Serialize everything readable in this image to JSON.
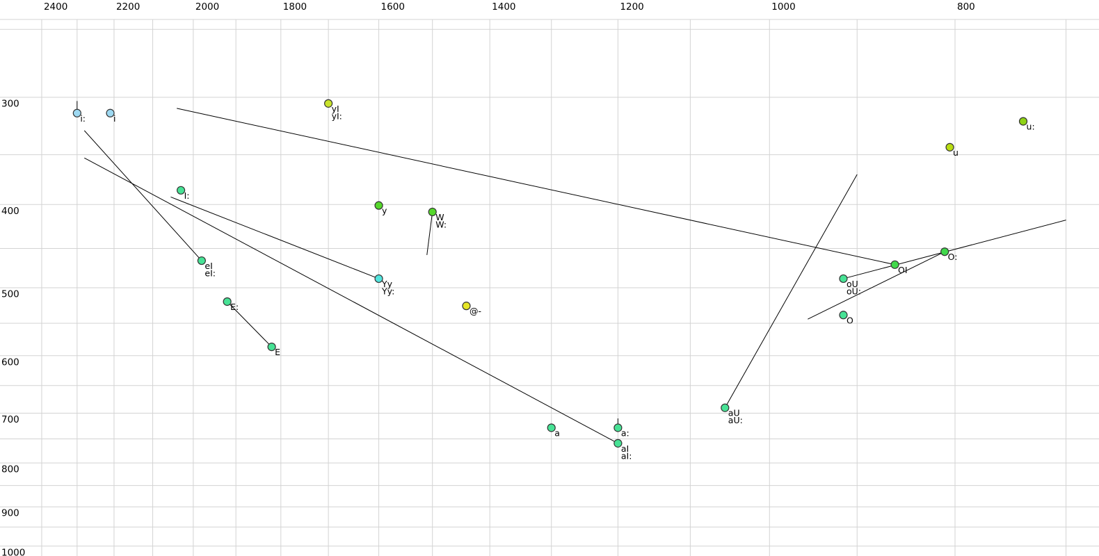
{
  "chart_data": {
    "type": "scatter",
    "title": "",
    "description": "Vowel formant plot: F2 (Hz) on reversed log top axis, F1 (Hz) on reversed log left axis, X-SAMPA vowel labels with diphthong trajectory lines",
    "x_axis": {
      "position": "top",
      "scale": "log",
      "reversed": true,
      "tick_labels": [
        2400,
        2200,
        2000,
        1800,
        1600,
        1400,
        1200,
        1000,
        800
      ],
      "range_hz": [
        2524,
        673
      ]
    },
    "y_axis": {
      "position": "left",
      "scale": "log",
      "reversed": true,
      "tick_labels": [
        300,
        400,
        500,
        600,
        700,
        800,
        900,
        1000
      ],
      "range_hz": [
        244,
        1027
      ]
    },
    "grid": {
      "on": true,
      "color": "#d3d3d3",
      "x_lines_hz": [
        2400,
        2300,
        2200,
        2100,
        2000,
        1900,
        1800,
        1700,
        1600,
        1500,
        1400,
        1300,
        1200,
        1100,
        1000,
        900,
        800,
        700
      ],
      "y_lines_hz": [
        250,
        300,
        350,
        400,
        450,
        500,
        550,
        600,
        650,
        700,
        750,
        800,
        850,
        900,
        950,
        1000
      ],
      "top_border": true
    },
    "point_border_color": "#333333",
    "line_color": "#000000",
    "points": [
      {
        "labels": [
          "i:"
        ],
        "f2": 2300,
        "f1": 313,
        "color": "#9ED9F2"
      },
      {
        "labels": [
          "i"
        ],
        "f2": 2210,
        "f1": 313,
        "color": "#9ED9F2"
      },
      {
        "labels": [
          "I:"
        ],
        "f2": 2030,
        "f1": 385,
        "color": "#47E295"
      },
      {
        "labels": [
          "eI",
          "eI:"
        ],
        "f2": 1980,
        "f1": 465,
        "color": "#47E295"
      },
      {
        "labels": [
          "E:"
        ],
        "f2": 1920,
        "f1": 519,
        "color": "#47E295"
      },
      {
        "labels": [
          "E"
        ],
        "f2": 1820,
        "f1": 586,
        "color": "#47E295"
      },
      {
        "labels": [
          "yI",
          "yI:"
        ],
        "f2": 1700,
        "f1": 305,
        "color": "#C9E32B"
      },
      {
        "labels": [
          "y"
        ],
        "f2": 1600,
        "f1": 401,
        "color": "#55D72B"
      },
      {
        "labels": [
          "Yy",
          "Yy:"
        ],
        "f2": 1600,
        "f1": 488,
        "color": "#52E5DE"
      },
      {
        "labels": [
          "W",
          "W:"
        ],
        "f2": 1500,
        "f1": 408,
        "color": "#55D72B"
      },
      {
        "labels": [
          "@-"
        ],
        "f2": 1440,
        "f1": 525,
        "color": "#E6E626"
      },
      {
        "labels": [
          "a"
        ],
        "f2": 1300,
        "f1": 728,
        "color": "#47E295"
      },
      {
        "labels": [
          "a:"
        ],
        "f2": 1200,
        "f1": 728,
        "color": "#47E295"
      },
      {
        "labels": [
          "aI",
          "aI:"
        ],
        "f2": 1200,
        "f1": 759,
        "color": "#47E295"
      },
      {
        "labels": [
          "aU",
          "aU:"
        ],
        "f2": 1055,
        "f1": 690,
        "color": "#47E295"
      },
      {
        "labels": [
          "oU",
          "oU:"
        ],
        "f2": 915,
        "f1": 488,
        "color": "#47E295"
      },
      {
        "labels": [
          "O"
        ],
        "f2": 915,
        "f1": 538,
        "color": "#47E295"
      },
      {
        "labels": [
          "OI"
        ],
        "f2": 860,
        "f1": 470,
        "color": "#41D84B"
      },
      {
        "labels": [
          "O:"
        ],
        "f2": 810,
        "f1": 454,
        "color": "#41D84B"
      },
      {
        "labels": [
          "u"
        ],
        "f2": 805,
        "f1": 343,
        "color": "#B9DD12"
      },
      {
        "labels": [
          "u:"
        ],
        "f2": 737,
        "f1": 320,
        "color": "#8FD315"
      }
    ],
    "segments": [
      {
        "name": "trajectory-to-OI",
        "f2a": 2040,
        "f1a": 309,
        "f2b": 860,
        "f1b": 470
      },
      {
        "name": "trajectory-to-eI",
        "f2a": 2280,
        "f1a": 328,
        "f2b": 1980,
        "f1b": 465
      },
      {
        "name": "trajectory-to-aI",
        "f2a": 2280,
        "f1a": 353,
        "f2b": 1200,
        "f1b": 759
      },
      {
        "name": "trajectory-to-Yy",
        "f2a": 2055,
        "f1a": 392,
        "f2b": 1600,
        "f1b": 488
      },
      {
        "name": "trajectory-E",
        "f2a": 1920,
        "f1a": 519,
        "f2b": 1820,
        "f1b": 586
      },
      {
        "name": "trajectory-to-W",
        "f2a": 1510,
        "f1a": 458,
        "f2b": 1500,
        "f1b": 408
      },
      {
        "name": "trajectory-aU",
        "f2a": 1055,
        "f1a": 690,
        "f2b": 900,
        "f1b": 369
      },
      {
        "name": "trajectory-to-Ol",
        "f2a": 955,
        "f1a": 544,
        "f2b": 810,
        "f1b": 454
      },
      {
        "name": "trajectory-oU",
        "f2a": 915,
        "f1a": 488,
        "f2b": 700,
        "f1b": 417
      },
      {
        "name": "tick-i-long",
        "f2a": 2300,
        "f1a": 303,
        "f2b": 2300,
        "f1b": 313
      },
      {
        "name": "tick-a-long",
        "f2a": 1200,
        "f1a": 710,
        "f2b": 1200,
        "f1b": 728
      }
    ]
  }
}
